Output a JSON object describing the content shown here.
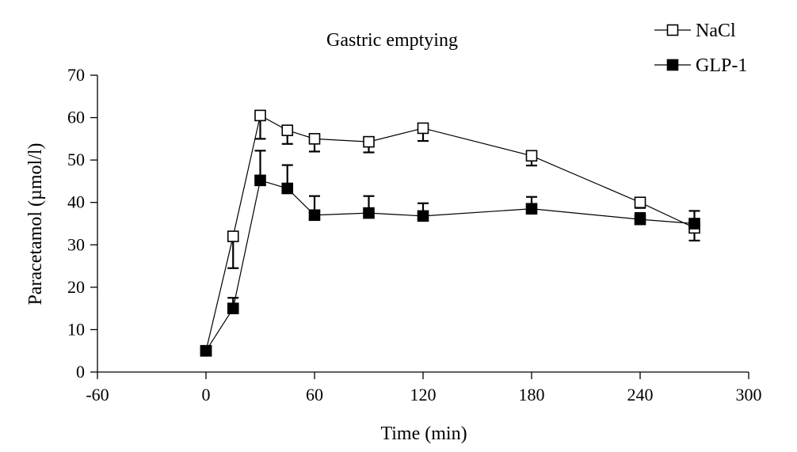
{
  "chart_data": {
    "type": "line",
    "title": "Gastric emptying",
    "xlabel": "Time (min)",
    "ylabel": "Paracetamol (µmol/l)",
    "xlim": [
      -60,
      300
    ],
    "ylim": [
      0,
      70
    ],
    "xticks": [
      -60,
      0,
      60,
      120,
      180,
      240,
      300
    ],
    "yticks": [
      0,
      10,
      20,
      30,
      40,
      50,
      60,
      70
    ],
    "grid": false,
    "legend_position": "top-right",
    "series": [
      {
        "name": "NaCl",
        "marker": "open-square",
        "x": [
          0,
          15,
          30,
          45,
          60,
          90,
          120,
          180,
          240,
          270
        ],
        "y": [
          5,
          32,
          60.5,
          57,
          55,
          54.3,
          57.5,
          51,
          40,
          34
        ],
        "error": [
          0,
          7.5,
          5.5,
          3.2,
          3,
          2.5,
          3,
          2.3,
          1.3,
          3
        ]
      },
      {
        "name": "GLP-1",
        "marker": "filled-square",
        "x": [
          0,
          15,
          30,
          45,
          60,
          90,
          120,
          180,
          240,
          270
        ],
        "y": [
          5,
          15,
          45.2,
          43.3,
          37,
          37.5,
          36.8,
          38.5,
          36,
          35
        ],
        "error": [
          0,
          2.5,
          7,
          5.5,
          4.5,
          4,
          3,
          2.8,
          1.5,
          3
        ]
      }
    ]
  }
}
